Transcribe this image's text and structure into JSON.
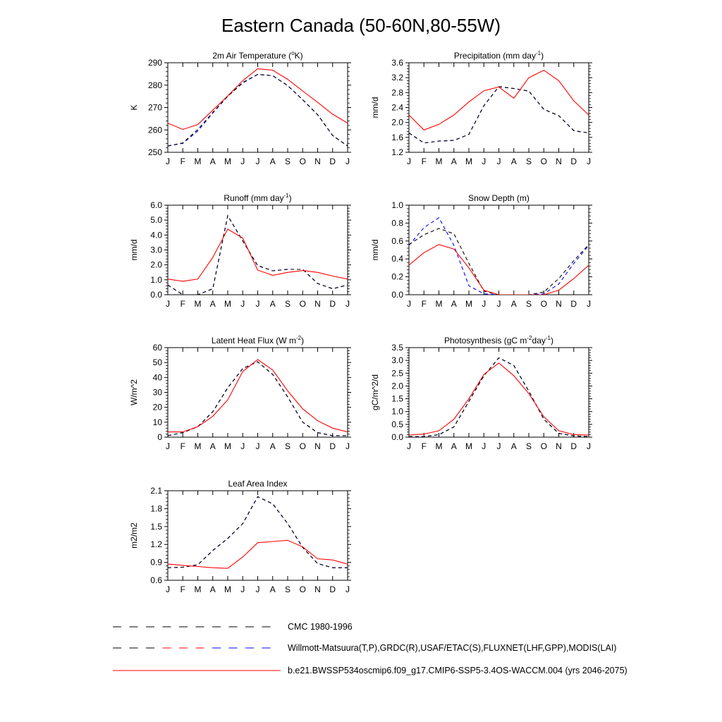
{
  "figure": {
    "title": "Eastern Canada (50-60N,80-55W)",
    "colors": {
      "obs_cmc": "#000000",
      "obs_other": "#0000ff",
      "model": "#ff0000"
    }
  },
  "chart_data": [
    {
      "type": "line",
      "title": "2m Air Temperature",
      "title_suffix": "(°K)",
      "title_suffix_parts": {
        "pre": "(",
        "sup": "o",
        "post": "K)"
      },
      "ylabel": "K",
      "ylim": [
        250,
        290
      ],
      "yticks": [
        "250",
        "260",
        "270",
        "280",
        "290"
      ],
      "categories": [
        "J",
        "F",
        "M",
        "A",
        "M",
        "J",
        "J",
        "A",
        "S",
        "O",
        "N",
        "D",
        "J"
      ],
      "series": [
        {
          "name": "Willmott-Matsuura(T,P),GRDC(R),USAF/ETAC(S),FLUXNET(LHF,GPP),MODIS(LAI)",
          "style": "dashed",
          "color": "blue",
          "values": [
            252.8,
            254.0,
            259.5,
            267.5,
            275.0,
            281.2,
            284.8,
            284.2,
            279.8,
            273.5,
            266.8,
            257.5,
            252.8
          ]
        },
        {
          "name": "CMC 1980-1996",
          "style": "dashed",
          "color": "black",
          "values": [
            252.8,
            254.2,
            260.2,
            267.8,
            275.0,
            281.0,
            284.8,
            284.2,
            279.8,
            273.5,
            266.8,
            257.5,
            252.8
          ]
        },
        {
          "name": "b.e21.BWSSP534oscmip6.f09_g17.CMIP6-SSP5-3.4OS-WACCM.004 (yrs 2046-2075)",
          "style": "solid",
          "color": "red",
          "values": [
            263.0,
            260.2,
            262.4,
            268.8,
            275.2,
            282.0,
            287.3,
            286.7,
            282.6,
            277.4,
            272.3,
            267.0,
            263.0
          ]
        }
      ]
    },
    {
      "type": "line",
      "title": "Precipitation",
      "title_suffix": "(mm day-1)",
      "title_suffix_parts": {
        "pre": "(mm day",
        "sup": "-1",
        "post": ")"
      },
      "ylabel": "mm/d",
      "ylim": [
        1.2,
        3.6
      ],
      "yticks": [
        "1.2",
        "1.6",
        "2.0",
        "2.4",
        "2.8",
        "3.2",
        "3.6"
      ],
      "categories": [
        "J",
        "F",
        "M",
        "A",
        "M",
        "J",
        "J",
        "A",
        "S",
        "O",
        "N",
        "D",
        "J"
      ],
      "series": [
        {
          "name": "Willmott-Matsuura(T,P),GRDC(R),USAF/ETAC(S),FLUXNET(LHF,GPP),MODIS(LAI)",
          "style": "dashed",
          "color": "blue",
          "values": [
            1.72,
            1.45,
            1.5,
            1.52,
            1.68,
            2.45,
            2.96,
            2.91,
            2.84,
            2.35,
            2.18,
            1.78,
            1.72
          ]
        },
        {
          "name": "CMC 1980-1996",
          "style": "dashed",
          "color": "black",
          "values": [
            1.72,
            1.45,
            1.5,
            1.52,
            1.68,
            2.45,
            2.96,
            2.91,
            2.84,
            2.35,
            2.18,
            1.78,
            1.72
          ]
        },
        {
          "name": "b.e21.BWSSP534oscmip6.f09_g17.CMIP6-SSP5-3.4OS-WACCM.004 (yrs 2046-2075)",
          "style": "solid",
          "color": "red",
          "values": [
            2.2,
            1.8,
            1.95,
            2.2,
            2.55,
            2.85,
            2.95,
            2.65,
            3.2,
            3.4,
            3.12,
            2.58,
            2.2
          ]
        }
      ]
    },
    {
      "type": "line",
      "title": "Runoff",
      "title_suffix": "(mm day-1)",
      "title_suffix_parts": {
        "pre": "(mm day",
        "sup": "-1",
        "post": ")"
      },
      "ylabel": "mm/d",
      "ylim": [
        0,
        6
      ],
      "yticks": [
        "0.0",
        "1.0",
        "2.0",
        "3.0",
        "4.0",
        "5.0",
        "6.0"
      ],
      "categories": [
        "J",
        "F",
        "M",
        "A",
        "M",
        "J",
        "J",
        "A",
        "S",
        "O",
        "N",
        "D",
        "J"
      ],
      "series": [
        {
          "name": "Willmott-Matsuura(T,P),GRDC(R),USAF/ETAC(S),FLUXNET(LHF,GPP),MODIS(LAI)",
          "style": "dashed",
          "color": "blue",
          "values": [
            0.65,
            0.0,
            0.0,
            0.4,
            5.3,
            3.6,
            1.95,
            1.6,
            1.7,
            1.7,
            0.75,
            0.4,
            0.65
          ]
        },
        {
          "name": "CMC 1980-1996",
          "style": "dashed",
          "color": "black",
          "values": [
            0.65,
            0.0,
            0.0,
            0.4,
            5.3,
            3.6,
            1.95,
            1.6,
            1.7,
            1.7,
            0.75,
            0.4,
            0.65
          ]
        },
        {
          "name": "b.e21.BWSSP534oscmip6.f09_g17.CMIP6-SSP5-3.4OS-WACCM.004 (yrs 2046-2075)",
          "style": "solid",
          "color": "red",
          "values": [
            1.05,
            0.9,
            1.05,
            2.5,
            4.4,
            3.8,
            1.65,
            1.3,
            1.5,
            1.62,
            1.5,
            1.25,
            1.05
          ]
        }
      ]
    },
    {
      "type": "line",
      "title": "Snow Depth",
      "title_suffix": "(m)",
      "title_suffix_parts": {
        "pre": "(m)",
        "sup": "",
        "post": ""
      },
      "ylabel": "mm/d",
      "ylim": [
        0,
        1
      ],
      "yticks": [
        "0.0",
        "0.2",
        "0.4",
        "0.6",
        "0.8",
        "1.0"
      ],
      "categories": [
        "J",
        "F",
        "M",
        "A",
        "M",
        "J",
        "J",
        "A",
        "S",
        "O",
        "N",
        "D",
        "J"
      ],
      "series": [
        {
          "name": "Willmott-Matsuura(T,P),GRDC(R),USAF/ETAC(S),FLUXNET(LHF,GPP),MODIS(LAI)",
          "style": "dashed",
          "color": "blue",
          "values": [
            0.55,
            0.75,
            0.86,
            0.55,
            0.1,
            0.01,
            0.0,
            0.0,
            0.0,
            0.01,
            0.12,
            0.35,
            0.55
          ]
        },
        {
          "name": "CMC 1980-1996",
          "style": "dashed",
          "color": "black",
          "values": [
            0.56,
            0.67,
            0.74,
            0.68,
            0.35,
            0.04,
            0.0,
            0.0,
            0.0,
            0.03,
            0.18,
            0.38,
            0.56
          ]
        },
        {
          "name": "b.e21.BWSSP534oscmip6.f09_g17.CMIP6-SSP5-3.4OS-WACCM.004 (yrs 2046-2075)",
          "style": "solid",
          "color": "red",
          "values": [
            0.33,
            0.47,
            0.56,
            0.51,
            0.3,
            0.05,
            0.0,
            0.0,
            0.0,
            0.0,
            0.05,
            0.18,
            0.33
          ]
        }
      ]
    },
    {
      "type": "line",
      "title": "Latent Heat Flux",
      "title_suffix": "(W m-2)",
      "title_suffix_parts": {
        "pre": "(W m",
        "sup": "-2",
        "post": ")"
      },
      "ylabel": "W/m^2",
      "ylim": [
        0,
        60
      ],
      "yticks": [
        "0",
        "10",
        "20",
        "30",
        "40",
        "50",
        "60"
      ],
      "categories": [
        "J",
        "F",
        "M",
        "A",
        "M",
        "J",
        "J",
        "A",
        "S",
        "O",
        "N",
        "D",
        "J"
      ],
      "series": [
        {
          "name": "Willmott-Matsuura(T,P),GRDC(R),USAF/ETAC(S),FLUXNET(LHF,GPP),MODIS(LAI)",
          "style": "dashed",
          "color": "blue",
          "values": [
            1.0,
            3.0,
            7.0,
            17.0,
            33.0,
            46.0,
            50.5,
            42.0,
            27.0,
            10.0,
            3.0,
            1.0,
            1.0
          ]
        },
        {
          "name": "CMC 1980-1996",
          "style": "dashed",
          "color": "black",
          "values": [
            1.0,
            3.0,
            7.0,
            17.0,
            33.0,
            46.0,
            50.5,
            42.0,
            27.0,
            10.0,
            3.0,
            1.0,
            1.0
          ]
        },
        {
          "name": "b.e21.BWSSP534oscmip6.f09_g17.CMIP6-SSP5-3.4OS-WACCM.004 (yrs 2046-2075)",
          "style": "solid",
          "color": "red",
          "values": [
            3.5,
            3.5,
            7.0,
            14.0,
            25.0,
            44.0,
            52.0,
            45.0,
            31.0,
            19.0,
            11.0,
            6.0,
            3.5
          ]
        }
      ]
    },
    {
      "type": "line",
      "title": "Photosynthesis",
      "title_suffix": "(gC m-2day-1)",
      "title_suffix_parts": {
        "pre": "(gC m",
        "sup": "-2",
        "mid": "day",
        "sup2": "-1",
        "post": ")"
      },
      "ylabel": "gC/m^2/d",
      "ylim": [
        0,
        3.5
      ],
      "yticks": [
        "0.0",
        "0.5",
        "1.0",
        "1.5",
        "2.0",
        "2.5",
        "3.0",
        "3.5"
      ],
      "categories": [
        "J",
        "F",
        "M",
        "A",
        "M",
        "J",
        "J",
        "A",
        "S",
        "O",
        "N",
        "D",
        "J"
      ],
      "series": [
        {
          "name": "Willmott-Matsuura(T,P),GRDC(R),USAF/ETAC(S),FLUXNET(LHF,GPP),MODIS(LAI)",
          "style": "dashed",
          "color": "blue",
          "values": [
            0.02,
            0.02,
            0.1,
            0.4,
            1.4,
            2.4,
            3.1,
            2.8,
            1.8,
            0.7,
            0.15,
            0.05,
            0.02
          ]
        },
        {
          "name": "CMC 1980-1996",
          "style": "dashed",
          "color": "black",
          "values": [
            0.02,
            0.02,
            0.1,
            0.4,
            1.4,
            2.4,
            3.1,
            2.8,
            1.8,
            0.7,
            0.15,
            0.05,
            0.02
          ]
        },
        {
          "name": "b.e21.BWSSP534oscmip6.f09_g17.CMIP6-SSP5-3.4OS-WACCM.004 (yrs 2046-2075)",
          "style": "solid",
          "color": "red",
          "values": [
            0.08,
            0.12,
            0.25,
            0.7,
            1.5,
            2.45,
            2.9,
            2.4,
            1.7,
            0.8,
            0.25,
            0.1,
            0.08
          ]
        }
      ]
    },
    {
      "type": "line",
      "title": "Leaf Area Index",
      "title_suffix": "",
      "title_suffix_parts": {
        "pre": "",
        "sup": "",
        "post": ""
      },
      "ylabel": "m2/m2",
      "ylim": [
        0.6,
        2.1
      ],
      "yticks": [
        "0.6",
        "0.9",
        "1.2",
        "1.5",
        "1.8",
        "2.1"
      ],
      "categories": [
        "J",
        "F",
        "M",
        "A",
        "M",
        "J",
        "J",
        "A",
        "S",
        "O",
        "N",
        "D",
        "J"
      ],
      "series": [
        {
          "name": "Willmott-Matsuura(T,P),GRDC(R),USAF/ETAC(S),FLUXNET(LHF,GPP),MODIS(LAI)",
          "style": "dashed",
          "color": "blue",
          "values": [
            0.81,
            0.82,
            0.86,
            1.1,
            1.3,
            1.55,
            2.0,
            1.88,
            1.55,
            1.15,
            0.88,
            0.81,
            0.81
          ]
        },
        {
          "name": "CMC 1980-1996",
          "style": "dashed",
          "color": "black",
          "values": [
            0.81,
            0.82,
            0.86,
            1.1,
            1.3,
            1.55,
            2.0,
            1.88,
            1.55,
            1.15,
            0.88,
            0.81,
            0.81
          ]
        },
        {
          "name": "b.e21.BWSSP534oscmip6.f09_g17.CMIP6-SSP5-3.4OS-WACCM.004 (yrs 2046-2075)",
          "style": "solid",
          "color": "red",
          "values": [
            0.87,
            0.85,
            0.83,
            0.81,
            0.8,
            0.99,
            1.23,
            1.25,
            1.27,
            1.16,
            0.96,
            0.94,
            0.87
          ]
        }
      ]
    }
  ],
  "legend": [
    {
      "label": "CMC 1980-1996",
      "style": "dashed",
      "colors": [
        "#000000"
      ]
    },
    {
      "label": "Willmott-Matsuura(T,P),GRDC(R),USAF/ETAC(S),FLUXNET(LHF,GPP),MODIS(LAI)",
      "style": "dashed",
      "colors": [
        "#000000",
        "#ff0000",
        "#0000ff"
      ]
    },
    {
      "label": "b.e21.BWSSP534oscmip6.f09_g17.CMIP6-SSP5-3.4OS-WACCM.004 (yrs 2046-2075)",
      "style": "solid",
      "colors": [
        "#ff0000"
      ]
    }
  ]
}
